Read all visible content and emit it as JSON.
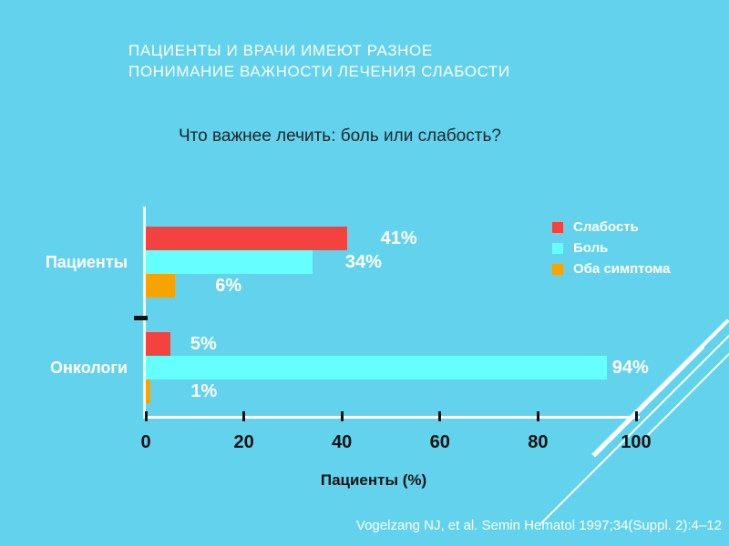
{
  "slide": {
    "title_line1": "ПАЦИЕНТЫ И ВРАЧИ ИМЕЮТ РАЗНОЕ",
    "title_line2": "ПОНИМАНИЕ ВАЖНОСТИ ЛЕЧЕНИЯ СЛАБОСТИ",
    "subtitle": "Что важнее лечить: боль или слабость?",
    "citation": "Vogelzang NJ, et al. Semin Hematol 1997;34(Suppl. 2):4–12",
    "background_color": "#63D3ED"
  },
  "chart_data": {
    "type": "bar",
    "orientation": "horizontal",
    "title": "Что важнее лечить: боль или слабость?",
    "categories": [
      "Пациенты",
      "Онкологи"
    ],
    "series": [
      {
        "name": "Слабость",
        "color": "#F4433F",
        "values": [
          41,
          5
        ],
        "labels": [
          "41%",
          "5%"
        ]
      },
      {
        "name": "Боль",
        "color": "#66FFFF",
        "values": [
          34,
          94
        ],
        "labels": [
          "34%",
          "94%"
        ]
      },
      {
        "name": "Оба симптома",
        "color": "#F7A400",
        "values": [
          6,
          1
        ],
        "labels": [
          "6%",
          "1%"
        ]
      }
    ],
    "xlabel": "Пациенты (%)",
    "xlim": [
      0,
      100
    ],
    "x_ticks": [
      0,
      20,
      40,
      60,
      80,
      100
    ],
    "legend_position": "right",
    "grid": false,
    "axis_color": "#FFFFFF",
    "tick_color": "#121212",
    "value_label_color": "#FFFFFF"
  }
}
